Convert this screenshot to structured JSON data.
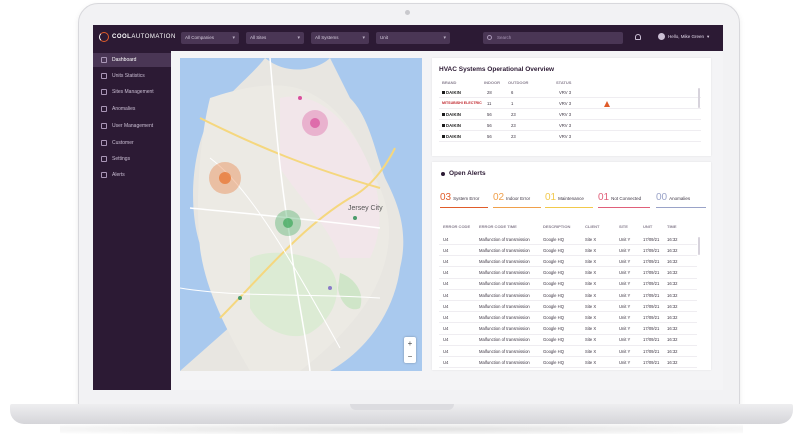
{
  "app": {
    "logo_text_bold": "COOL",
    "logo_text_rest": "AUTOMATION"
  },
  "topbar": {
    "filters": [
      {
        "label": "All Companies"
      },
      {
        "label": "All Sites"
      },
      {
        "label": "All Systems"
      },
      {
        "label": "Unit"
      }
    ],
    "search_placeholder": "Search",
    "user_greeting": "Hello, Mike Green"
  },
  "sidebar": {
    "items": [
      {
        "label": "Dashboard",
        "icon": "dashboard-icon",
        "active": true
      },
      {
        "label": "Units Statistics",
        "icon": "stats-icon"
      },
      {
        "label": "Sites Management",
        "icon": "sites-icon"
      },
      {
        "label": "Anomalies",
        "icon": "anomalies-icon"
      },
      {
        "label": "User Management",
        "icon": "users-icon"
      },
      {
        "label": "Customer",
        "icon": "customer-icon"
      },
      {
        "label": "Settings",
        "icon": "gear-icon"
      },
      {
        "label": "Alerts",
        "icon": "bell-icon"
      }
    ]
  },
  "map": {
    "city_label": "Jersey City",
    "zoom_in": "+",
    "zoom_out": "−",
    "clusters": [
      {
        "label": "",
        "color": "#d94f9c"
      },
      {
        "label": "",
        "color": "#e8702a"
      },
      {
        "label": "",
        "color": "#3aa75a"
      }
    ]
  },
  "hvac": {
    "title": "HVAC Systems Operational Overview",
    "columns": [
      "BRAND",
      "INDOOR",
      "OUTDOOR",
      "STATUS"
    ],
    "rows": [
      {
        "brand": "DAIKIN",
        "indoor": "28",
        "outdoor": "6",
        "status": "VRV 3"
      },
      {
        "brand": "MITSUBISHI ELECTRIC",
        "indoor": "11",
        "outdoor": "1",
        "status": "VRV 3",
        "warning": true
      },
      {
        "brand": "DAIKIN",
        "indoor": "56",
        "outdoor": "23",
        "status": "VRV 3"
      },
      {
        "brand": "DAIKIN",
        "indoor": "56",
        "outdoor": "23",
        "status": "VRV 3"
      },
      {
        "brand": "DAIKIN",
        "indoor": "56",
        "outdoor": "23",
        "status": "VRV 3"
      }
    ]
  },
  "alerts": {
    "title": "Open Alerts",
    "summary": [
      {
        "count": "03",
        "label": "System Error",
        "color": "#e05c2a"
      },
      {
        "count": "02",
        "label": "Indoor Error",
        "color": "#f0a04b"
      },
      {
        "count": "01",
        "label": "Maintenance",
        "color": "#f2c94c"
      },
      {
        "count": "01",
        "label": "Not Connected",
        "color": "#e0607a"
      },
      {
        "count": "00",
        "label": "Anomalies",
        "color": "#9aa3c8"
      }
    ],
    "columns": [
      "ERROR CODE",
      "ERROR CODE TIME",
      "DESCRIPTION",
      "CLIENT",
      "SITE",
      "UNIT",
      "TIME"
    ],
    "rows": [
      {
        "code": "U4",
        "text": "Malfunction of transmission",
        "desc": "Google HQ",
        "client": "Site X",
        "site": "Unit Y",
        "unit": "17/09/21",
        "time": "16:32"
      },
      {
        "code": "U4",
        "text": "Malfunction of transmission",
        "desc": "Google HQ",
        "client": "Site X",
        "site": "Unit Y",
        "unit": "17/09/21",
        "time": "16:32"
      },
      {
        "code": "U4",
        "text": "Malfunction of transmission",
        "desc": "Google HQ",
        "client": "Site X",
        "site": "Unit Y",
        "unit": "17/09/21",
        "time": "16:32"
      },
      {
        "code": "U4",
        "text": "Malfunction of transmission",
        "desc": "Google HQ",
        "client": "Site X",
        "site": "Unit Y",
        "unit": "17/09/21",
        "time": "16:32"
      },
      {
        "code": "U4",
        "text": "Malfunction of transmission",
        "desc": "Google HQ",
        "client": "Site X",
        "site": "Unit Y",
        "unit": "17/09/21",
        "time": "16:32"
      },
      {
        "code": "U4",
        "text": "Malfunction of transmission",
        "desc": "Google HQ",
        "client": "Site X",
        "site": "Unit Y",
        "unit": "17/09/21",
        "time": "16:32"
      },
      {
        "code": "U4",
        "text": "Malfunction of transmission",
        "desc": "Google HQ",
        "client": "Site X",
        "site": "Unit Y",
        "unit": "17/09/21",
        "time": "16:32"
      },
      {
        "code": "U4",
        "text": "Malfunction of transmission",
        "desc": "Google HQ",
        "client": "Site X",
        "site": "Unit Y",
        "unit": "17/09/21",
        "time": "16:32"
      },
      {
        "code": "U4",
        "text": "Malfunction of transmission",
        "desc": "Google HQ",
        "client": "Site X",
        "site": "Unit Y",
        "unit": "17/09/21",
        "time": "16:32"
      },
      {
        "code": "U4",
        "text": "Malfunction of transmission",
        "desc": "Google HQ",
        "client": "Site X",
        "site": "Unit Y",
        "unit": "17/09/21",
        "time": "16:32"
      },
      {
        "code": "U4",
        "text": "Malfunction of transmission",
        "desc": "Google HQ",
        "client": "Site X",
        "site": "Unit Y",
        "unit": "17/09/21",
        "time": "16:32"
      },
      {
        "code": "U4",
        "text": "Malfunction of transmission",
        "desc": "Google HQ",
        "client": "Site X",
        "site": "Unit Y",
        "unit": "17/09/21",
        "time": "16:32"
      }
    ]
  }
}
